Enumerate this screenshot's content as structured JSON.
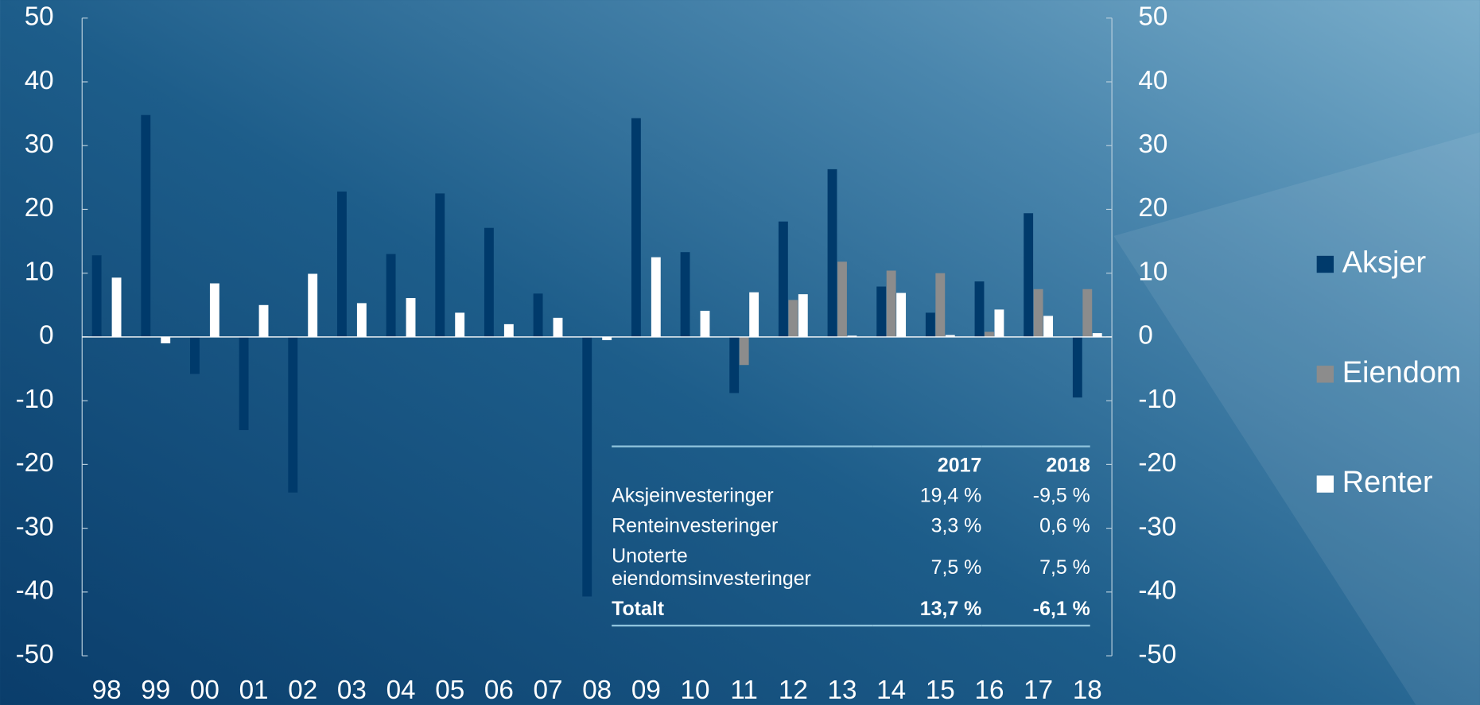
{
  "chart_data": {
    "type": "bar",
    "categories": [
      "98",
      "99",
      "00",
      "01",
      "02",
      "03",
      "04",
      "05",
      "06",
      "07",
      "08",
      "09",
      "10",
      "11",
      "12",
      "13",
      "14",
      "15",
      "16",
      "17",
      "18"
    ],
    "series": [
      {
        "name": "Aksjer",
        "color": "#003a6b",
        "values": [
          12.8,
          34.8,
          -5.8,
          -14.6,
          -24.4,
          22.8,
          13.0,
          22.5,
          17.1,
          6.8,
          -40.7,
          34.3,
          13.3,
          -8.8,
          18.1,
          26.3,
          7.9,
          3.8,
          8.7,
          19.4,
          -9.5
        ]
      },
      {
        "name": "Eiendom",
        "color": "#8c8c8c",
        "values": [
          null,
          null,
          null,
          null,
          null,
          null,
          null,
          null,
          null,
          null,
          null,
          null,
          null,
          -4.4,
          5.8,
          11.8,
          10.4,
          10.0,
          0.8,
          7.5,
          7.5
        ]
      },
      {
        "name": "Renter",
        "color": "#ffffff",
        "values": [
          9.3,
          -1.0,
          8.4,
          5.0,
          9.9,
          5.3,
          6.1,
          3.8,
          2.0,
          3.0,
          -0.5,
          12.5,
          4.1,
          7.0,
          6.7,
          0.2,
          6.9,
          0.3,
          4.3,
          3.3,
          0.6
        ]
      }
    ],
    "ylim": [
      -50,
      50
    ],
    "yticks": [
      -50,
      -40,
      -30,
      -20,
      -10,
      0,
      10,
      20,
      30,
      40,
      50
    ],
    "y2lim": [
      -50,
      50
    ],
    "y2ticks": [
      -50,
      -40,
      -30,
      -20,
      -10,
      0,
      10,
      20,
      30,
      40,
      50
    ],
    "legend": "right"
  },
  "table": {
    "columns": [
      "2017",
      "2018"
    ],
    "rows": [
      {
        "label": "Aksjeinvesteringer",
        "values": [
          "19,4 %",
          "-9,5 %"
        ]
      },
      {
        "label": "Renteinvesteringer",
        "values": [
          "3,3 %",
          "0,6 %"
        ]
      },
      {
        "label": "Unoterte eiendomsinvesteringer",
        "values": [
          "7,5 %",
          "7,5 %"
        ]
      },
      {
        "label": "Totalt",
        "values": [
          "13,7 %",
          "-6,1 %"
        ]
      }
    ]
  }
}
